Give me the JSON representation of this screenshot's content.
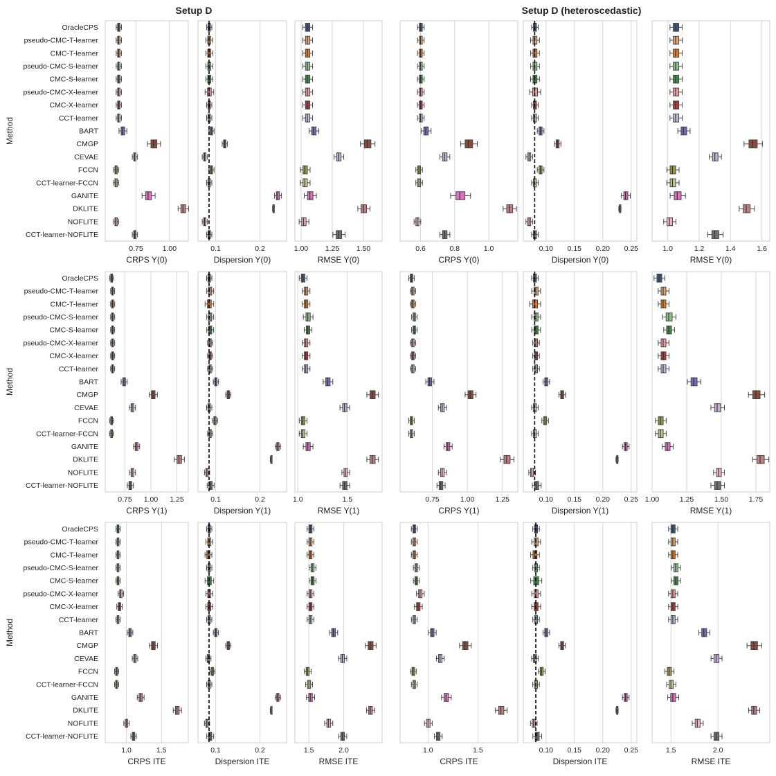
{
  "titles": [
    "Setup D",
    "Setup D (heteroscedastic)"
  ],
  "ylabel": "Method",
  "methods": [
    "OracleCPS",
    "pseudo-CMC-T-learner",
    "CMC-T-learner",
    "pseudo-CMC-S-learner",
    "CMC-S-learner",
    "pseudo-CMC-X-learner",
    "CMC-X-learner",
    "CCT-learner",
    "BART",
    "CMGP",
    "CEVAE",
    "FCCN",
    "CCT-learner-FCCN",
    "GANITE",
    "DKLITE",
    "NOFLITE",
    "CCT-learner-NOFLITE"
  ],
  "colors": [
    "#3a5a7a",
    "#e8a870",
    "#e07b20",
    "#8ec488",
    "#3e8a3e",
    "#f0a0a0",
    "#b03a3a",
    "#b8c0dc",
    "#7a68b8",
    "#8a4a3c",
    "#c4b0d8",
    "#9a9a40",
    "#c8c88c",
    "#e070c0",
    "#c08080",
    "#f4b0cc",
    "#707070"
  ],
  "chart_data": [
    {
      "type": "box",
      "row": 0,
      "col": 0,
      "xlabel": "CRPS Y(0)",
      "xlim": [
        0.52,
        1.14
      ],
      "ticks": [
        0.75,
        1.0
      ],
      "tick_labels": [
        "0.75",
        "1.00"
      ],
      "medians": [
        0.62,
        0.62,
        0.62,
        0.62,
        0.62,
        0.62,
        0.62,
        0.62,
        0.65,
        0.88,
        0.74,
        0.6,
        0.6,
        0.84,
        1.1,
        0.6,
        0.74
      ],
      "widths": [
        0.02,
        0.02,
        0.02,
        0.02,
        0.02,
        0.02,
        0.02,
        0.02,
        0.03,
        0.05,
        0.02,
        0.02,
        0.02,
        0.05,
        0.04,
        0.02,
        0.02
      ]
    },
    {
      "type": "box",
      "row": 0,
      "col": 1,
      "xlabel": "Dispersion Y(0)",
      "xlim": [
        0.06,
        0.26
      ],
      "ticks": [
        0.1,
        0.2
      ],
      "tick_labels": [
        "0.1",
        "0.2"
      ],
      "medians": [
        0.085,
        0.085,
        0.085,
        0.085,
        0.085,
        0.085,
        0.085,
        0.085,
        0.09,
        0.12,
        0.075,
        0.09,
        0.085,
        0.24,
        0.23,
        0.075,
        0.085
      ],
      "widths": [
        0.006,
        0.008,
        0.008,
        0.008,
        0.008,
        0.01,
        0.006,
        0.006,
        0.006,
        0.006,
        0.006,
        0.006,
        0.006,
        0.008,
        0.002,
        0.006,
        0.006
      ],
      "refline": 0.085
    },
    {
      "type": "box",
      "row": 0,
      "col": 2,
      "xlabel": "RMSE Y(0)",
      "xlim": [
        0.95,
        1.65
      ],
      "ticks": [
        1.0,
        1.25,
        1.5
      ],
      "tick_labels": [
        "1.00",
        "1.25",
        "1.50"
      ],
      "medians": [
        1.05,
        1.05,
        1.05,
        1.05,
        1.05,
        1.05,
        1.05,
        1.05,
        1.1,
        1.53,
        1.3,
        1.03,
        1.03,
        1.07,
        1.5,
        1.02,
        1.3
      ],
      "widths": [
        0.04,
        0.04,
        0.04,
        0.04,
        0.04,
        0.04,
        0.04,
        0.04,
        0.04,
        0.06,
        0.04,
        0.04,
        0.04,
        0.05,
        0.05,
        0.04,
        0.05
      ]
    },
    {
      "type": "box",
      "row": 0,
      "col": 3,
      "xlabel": "CRPS Y(0)",
      "xlim": [
        0.48,
        1.17
      ],
      "ticks": [
        0.6,
        0.8,
        1.0
      ],
      "tick_labels": [
        "0.6",
        "0.8",
        "1.0"
      ],
      "medians": [
        0.6,
        0.6,
        0.6,
        0.6,
        0.6,
        0.6,
        0.6,
        0.6,
        0.63,
        0.88,
        0.74,
        0.59,
        0.59,
        0.83,
        1.12,
        0.58,
        0.74
      ],
      "widths": [
        0.02,
        0.02,
        0.02,
        0.02,
        0.02,
        0.02,
        0.02,
        0.02,
        0.03,
        0.05,
        0.03,
        0.02,
        0.02,
        0.06,
        0.04,
        0.02,
        0.03
      ]
    },
    {
      "type": "box",
      "row": 0,
      "col": 4,
      "xlabel": "Dispersion Y(0)",
      "xlim": [
        0.06,
        0.26
      ],
      "ticks": [
        0.1,
        0.15,
        0.2,
        0.25
      ],
      "tick_labels": [
        "0.10",
        "0.15",
        "0.20",
        "0.25"
      ],
      "medians": [
        0.08,
        0.08,
        0.08,
        0.08,
        0.08,
        0.08,
        0.08,
        0.08,
        0.09,
        0.12,
        0.07,
        0.09,
        0.08,
        0.24,
        0.23,
        0.07,
        0.08
      ],
      "widths": [
        0.006,
        0.008,
        0.008,
        0.008,
        0.008,
        0.01,
        0.006,
        0.006,
        0.006,
        0.006,
        0.006,
        0.006,
        0.006,
        0.008,
        0.002,
        0.006,
        0.006
      ],
      "refline": 0.08
    },
    {
      "type": "box",
      "row": 0,
      "col": 5,
      "xlabel": "RMSE Y(0)",
      "xlim": [
        0.9,
        1.65
      ],
      "ticks": [
        1.0,
        1.2,
        1.4,
        1.6
      ],
      "tick_labels": [
        "1.0",
        "1.2",
        "1.4",
        "1.6"
      ],
      "medians": [
        1.05,
        1.05,
        1.05,
        1.05,
        1.05,
        1.05,
        1.05,
        1.05,
        1.1,
        1.54,
        1.3,
        1.03,
        1.03,
        1.06,
        1.5,
        1.01,
        1.3
      ],
      "widths": [
        0.04,
        0.04,
        0.04,
        0.04,
        0.04,
        0.04,
        0.04,
        0.04,
        0.04,
        0.06,
        0.04,
        0.04,
        0.04,
        0.05,
        0.05,
        0.04,
        0.05
      ]
    },
    {
      "type": "box",
      "row": 1,
      "col": 0,
      "xlabel": "CRPS Y(1)",
      "xlim": [
        0.56,
        1.36
      ],
      "ticks": [
        0.75,
        1.0,
        1.25
      ],
      "tick_labels": [
        "0.75",
        "1.00",
        "1.25"
      ],
      "medians": [
        0.62,
        0.63,
        0.63,
        0.63,
        0.63,
        0.63,
        0.63,
        0.63,
        0.74,
        1.02,
        0.82,
        0.62,
        0.62,
        0.86,
        1.27,
        0.82,
        0.8
      ],
      "widths": [
        0.02,
        0.02,
        0.02,
        0.02,
        0.02,
        0.02,
        0.02,
        0.02,
        0.03,
        0.04,
        0.03,
        0.02,
        0.02,
        0.03,
        0.05,
        0.03,
        0.03
      ]
    },
    {
      "type": "box",
      "row": 1,
      "col": 1,
      "xlabel": "Dispersion Y(1)",
      "xlim": [
        0.06,
        0.26
      ],
      "ticks": [
        0.1,
        0.2
      ],
      "tick_labels": [
        "0.1",
        "0.2"
      ],
      "medians": [
        0.085,
        0.087,
        0.085,
        0.087,
        0.087,
        0.087,
        0.087,
        0.087,
        0.1,
        0.128,
        0.085,
        0.098,
        0.087,
        0.24,
        0.225,
        0.08,
        0.088
      ],
      "widths": [
        0.006,
        0.008,
        0.01,
        0.008,
        0.008,
        0.006,
        0.006,
        0.006,
        0.006,
        0.006,
        0.006,
        0.006,
        0.006,
        0.006,
        0.002,
        0.006,
        0.008
      ],
      "refline": 0.085
    },
    {
      "type": "box",
      "row": 1,
      "col": 2,
      "xlabel": "RMSE Y(1)",
      "xlim": [
        0.97,
        1.85
      ],
      "ticks": [
        1.0,
        1.5
      ],
      "tick_labels": [
        "1.0",
        "1.5"
      ],
      "medians": [
        1.05,
        1.08,
        1.08,
        1.1,
        1.1,
        1.08,
        1.08,
        1.08,
        1.3,
        1.75,
        1.47,
        1.05,
        1.05,
        1.1,
        1.75,
        1.48,
        1.47
      ],
      "widths": [
        0.04,
        0.04,
        0.04,
        0.05,
        0.04,
        0.04,
        0.04,
        0.04,
        0.05,
        0.06,
        0.05,
        0.04,
        0.04,
        0.05,
        0.06,
        0.04,
        0.05
      ]
    },
    {
      "type": "box",
      "row": 1,
      "col": 3,
      "xlabel": "CRPS Y(1)",
      "xlim": [
        0.52,
        1.36
      ],
      "ticks": [
        0.75,
        1.0,
        1.25
      ],
      "tick_labels": [
        "0.75",
        "1.00",
        "1.25"
      ],
      "medians": [
        0.6,
        0.61,
        0.61,
        0.62,
        0.62,
        0.61,
        0.61,
        0.61,
        0.73,
        1.02,
        0.82,
        0.6,
        0.6,
        0.86,
        1.28,
        0.82,
        0.81
      ],
      "widths": [
        0.02,
        0.02,
        0.02,
        0.02,
        0.02,
        0.02,
        0.02,
        0.02,
        0.03,
        0.04,
        0.03,
        0.02,
        0.02,
        0.03,
        0.05,
        0.03,
        0.03
      ]
    },
    {
      "type": "box",
      "row": 1,
      "col": 4,
      "xlabel": "Dispersion Y(1)",
      "xlim": [
        0.06,
        0.26
      ],
      "ticks": [
        0.1,
        0.15,
        0.2,
        0.25
      ],
      "tick_labels": [
        "0.10",
        "0.15",
        "0.20",
        "0.25"
      ],
      "medians": [
        0.08,
        0.082,
        0.08,
        0.082,
        0.082,
        0.082,
        0.082,
        0.082,
        0.1,
        0.128,
        0.08,
        0.098,
        0.08,
        0.24,
        0.225,
        0.075,
        0.083
      ],
      "widths": [
        0.006,
        0.008,
        0.01,
        0.008,
        0.008,
        0.006,
        0.006,
        0.006,
        0.006,
        0.006,
        0.006,
        0.006,
        0.006,
        0.006,
        0.002,
        0.006,
        0.008
      ],
      "refline": 0.08
    },
    {
      "type": "box",
      "row": 1,
      "col": 5,
      "xlabel": "RMSE Y(1)",
      "xlim": [
        1.0,
        1.85
      ],
      "ticks": [
        1.0,
        1.25,
        1.5,
        1.75
      ],
      "tick_labels": [
        "1.00",
        "1.25",
        "1.50",
        "1.75"
      ],
      "medians": [
        1.05,
        1.08,
        1.08,
        1.12,
        1.12,
        1.08,
        1.08,
        1.08,
        1.3,
        1.75,
        1.47,
        1.06,
        1.06,
        1.11,
        1.78,
        1.48,
        1.47
      ],
      "widths": [
        0.04,
        0.04,
        0.04,
        0.05,
        0.04,
        0.04,
        0.04,
        0.04,
        0.05,
        0.06,
        0.05,
        0.04,
        0.04,
        0.04,
        0.06,
        0.04,
        0.05
      ]
    },
    {
      "type": "box",
      "row": 2,
      "col": 0,
      "xlabel": "CRPS ITE",
      "xlim": [
        0.7,
        1.88
      ],
      "ticks": [
        1.0,
        1.5
      ],
      "tick_labels": [
        "1.0",
        "1.5"
      ],
      "medians": [
        0.88,
        0.88,
        0.88,
        0.88,
        0.88,
        0.92,
        0.9,
        0.88,
        1.05,
        1.38,
        1.12,
        0.86,
        0.86,
        1.2,
        1.72,
        1.0,
        1.1
      ],
      "widths": [
        0.03,
        0.03,
        0.03,
        0.03,
        0.03,
        0.04,
        0.04,
        0.03,
        0.04,
        0.06,
        0.04,
        0.03,
        0.03,
        0.05,
        0.06,
        0.04,
        0.04
      ]
    },
    {
      "type": "box",
      "row": 2,
      "col": 1,
      "xlabel": "Dispersion ITE",
      "xlim": [
        0.06,
        0.26
      ],
      "ticks": [
        0.1,
        0.2
      ],
      "tick_labels": [
        "0.1",
        "0.2"
      ],
      "medians": [
        0.085,
        0.085,
        0.083,
        0.085,
        0.085,
        0.085,
        0.085,
        0.085,
        0.1,
        0.128,
        0.083,
        0.092,
        0.085,
        0.24,
        0.225,
        0.08,
        0.087
      ],
      "widths": [
        0.006,
        0.008,
        0.008,
        0.006,
        0.01,
        0.008,
        0.008,
        0.006,
        0.006,
        0.006,
        0.006,
        0.006,
        0.006,
        0.006,
        0.002,
        0.006,
        0.008
      ],
      "refline": 0.085
    },
    {
      "type": "box",
      "row": 2,
      "col": 2,
      "xlabel": "RMSE ITE",
      "xlim": [
        1.3,
        2.55
      ],
      "ticks": [
        1.5,
        2.0
      ],
      "tick_labels": [
        "1.5",
        "2.0"
      ],
      "medians": [
        1.52,
        1.52,
        1.52,
        1.55,
        1.55,
        1.52,
        1.52,
        1.52,
        1.85,
        2.38,
        1.98,
        1.48,
        1.5,
        1.52,
        2.38,
        1.78,
        1.98
      ],
      "widths": [
        0.05,
        0.05,
        0.05,
        0.05,
        0.05,
        0.05,
        0.05,
        0.05,
        0.06,
        0.08,
        0.06,
        0.05,
        0.05,
        0.06,
        0.06,
        0.06,
        0.06
      ]
    },
    {
      "type": "box",
      "row": 2,
      "col": 3,
      "xlabel": "CRPS ITE",
      "xlim": [
        0.72,
        1.9
      ],
      "ticks": [
        1.0,
        1.5
      ],
      "tick_labels": [
        "1.0",
        "1.5"
      ],
      "medians": [
        0.86,
        0.86,
        0.86,
        0.88,
        0.88,
        0.92,
        0.9,
        0.86,
        1.04,
        1.37,
        1.12,
        0.85,
        0.86,
        1.18,
        1.73,
        1.0,
        1.1
      ],
      "widths": [
        0.03,
        0.03,
        0.03,
        0.03,
        0.03,
        0.04,
        0.04,
        0.03,
        0.04,
        0.06,
        0.04,
        0.03,
        0.03,
        0.05,
        0.06,
        0.04,
        0.04
      ]
    },
    {
      "type": "box",
      "row": 2,
      "col": 4,
      "xlabel": "Dispersion ITE",
      "xlim": [
        0.06,
        0.26
      ],
      "ticks": [
        0.1,
        0.15,
        0.2,
        0.25
      ],
      "tick_labels": [
        "0.10",
        "0.15",
        "0.20",
        "0.25"
      ],
      "medians": [
        0.082,
        0.082,
        0.08,
        0.082,
        0.082,
        0.082,
        0.082,
        0.082,
        0.1,
        0.128,
        0.08,
        0.092,
        0.082,
        0.24,
        0.225,
        0.078,
        0.084
      ],
      "widths": [
        0.006,
        0.008,
        0.008,
        0.006,
        0.01,
        0.008,
        0.008,
        0.006,
        0.006,
        0.006,
        0.006,
        0.006,
        0.006,
        0.006,
        0.002,
        0.006,
        0.008
      ],
      "refline": 0.082
    },
    {
      "type": "box",
      "row": 2,
      "col": 5,
      "xlabel": "RMSE ITE",
      "xlim": [
        1.3,
        2.55
      ],
      "ticks": [
        1.5,
        2.0
      ],
      "tick_labels": [
        "1.5",
        "2.0"
      ],
      "medians": [
        1.52,
        1.52,
        1.52,
        1.55,
        1.55,
        1.52,
        1.52,
        1.52,
        1.85,
        2.38,
        1.98,
        1.48,
        1.5,
        1.52,
        2.38,
        1.78,
        1.98
      ],
      "widths": [
        0.05,
        0.05,
        0.05,
        0.05,
        0.05,
        0.05,
        0.05,
        0.05,
        0.06,
        0.08,
        0.06,
        0.05,
        0.05,
        0.06,
        0.06,
        0.06,
        0.06
      ]
    }
  ]
}
